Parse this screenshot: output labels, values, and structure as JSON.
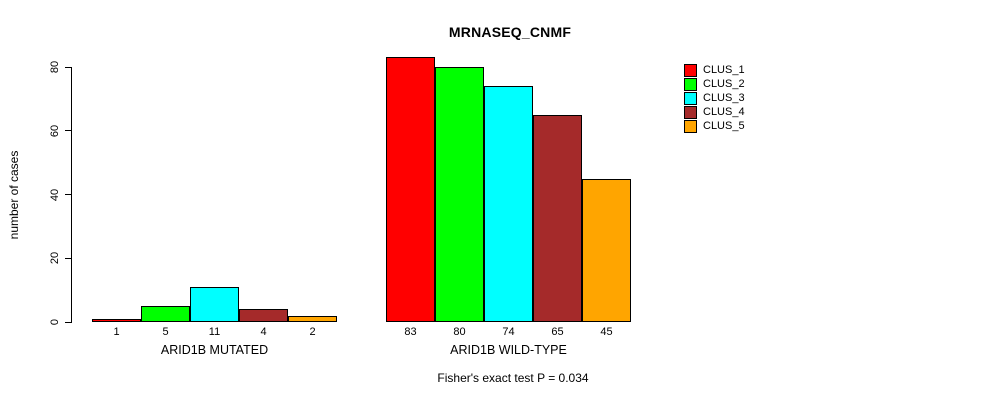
{
  "chart_data": {
    "type": "bar",
    "title": "MRNASEQ_CNMF",
    "ylabel": "number of cases",
    "subtitle": "Fisher's exact test P = 0.034",
    "yticks": [
      0,
      20,
      40,
      60,
      80
    ],
    "ylim": [
      0,
      80
    ],
    "grid": false,
    "legend_position": "top-right",
    "groups": [
      {
        "label": "ARID1B MUTATED",
        "values": [
          1,
          5,
          11,
          4,
          2
        ]
      },
      {
        "label": "ARID1B WILD-TYPE",
        "values": [
          83,
          80,
          74,
          65,
          45
        ]
      }
    ],
    "series_colors": [
      "#FF0000",
      "#00FF00",
      "#00FFFF",
      "#A52A2A",
      "#FFA500"
    ],
    "legend": [
      {
        "label": "CLUS_1",
        "color": "#FF0000"
      },
      {
        "label": "CLUS_2",
        "color": "#00FF00"
      },
      {
        "label": "CLUS_3",
        "color": "#00FFFF"
      },
      {
        "label": "CLUS_4",
        "color": "#A52A2A"
      },
      {
        "label": "CLUS_5",
        "color": "#FFA500"
      }
    ]
  }
}
